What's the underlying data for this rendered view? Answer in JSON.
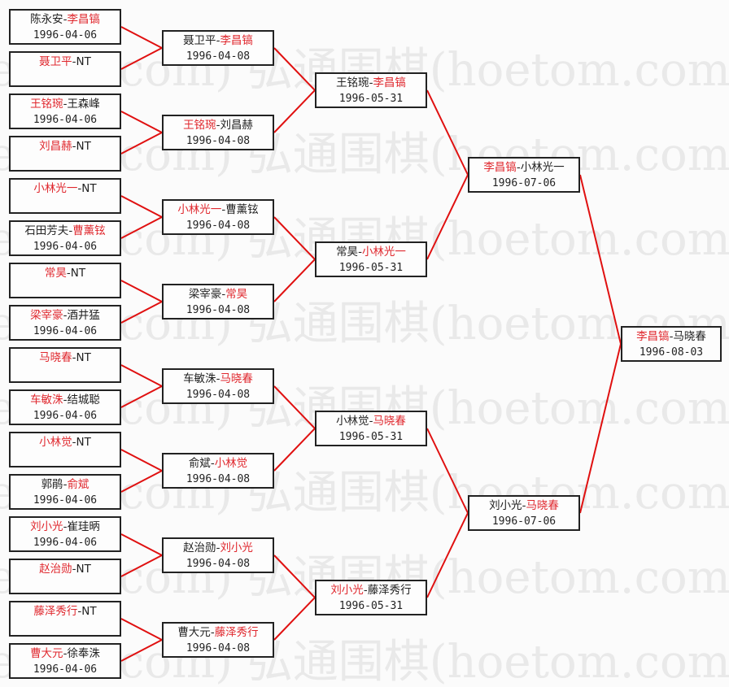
{
  "watermark": "弘通围棋(hoetom.com)",
  "colors": {
    "winner": "#e0282e",
    "line": "#e01010",
    "text": "#222222"
  },
  "rounds": [
    {
      "matches": [
        {
          "a": "陈永安",
          "b": "李昌镐",
          "winner": "b",
          "date": "1996-04-06"
        },
        {
          "a": "聂卫平",
          "b": "NT",
          "winner": "a",
          "date": ""
        },
        {
          "a": "王铭琬",
          "b": "王森峰",
          "winner": "a",
          "date": "1996-04-06"
        },
        {
          "a": "刘昌赫",
          "b": "NT",
          "winner": "a",
          "date": ""
        },
        {
          "a": "小林光一",
          "b": "NT",
          "winner": "a",
          "date": ""
        },
        {
          "a": "石田芳夫",
          "b": "曹薰铉",
          "winner": "b",
          "date": "1996-04-06"
        },
        {
          "a": "常昊",
          "b": "NT",
          "winner": "a",
          "date": ""
        },
        {
          "a": "梁宰豪",
          "b": "酒井猛",
          "winner": "a",
          "date": "1996-04-06"
        },
        {
          "a": "马晓春",
          "b": "NT",
          "winner": "a",
          "date": ""
        },
        {
          "a": "车敏洙",
          "b": "结城聪",
          "winner": "a",
          "date": "1996-04-06"
        },
        {
          "a": "小林觉",
          "b": "NT",
          "winner": "a",
          "date": ""
        },
        {
          "a": "郭鹃",
          "b": "俞斌",
          "winner": "b",
          "date": "1996-04-06"
        },
        {
          "a": "刘小光",
          "b": "崔珪昞",
          "winner": "a",
          "date": "1996-04-06"
        },
        {
          "a": "赵治勋",
          "b": "NT",
          "winner": "a",
          "date": ""
        },
        {
          "a": "藤泽秀行",
          "b": "NT",
          "winner": "a",
          "date": ""
        },
        {
          "a": "曹大元",
          "b": "徐奉洙",
          "winner": "a",
          "date": "1996-04-06"
        }
      ]
    },
    {
      "matches": [
        {
          "a": "聂卫平",
          "b": "李昌镐",
          "winner": "b",
          "date": "1996-04-08"
        },
        {
          "a": "王铭琬",
          "b": "刘昌赫",
          "winner": "a",
          "date": "1996-04-08"
        },
        {
          "a": "小林光一",
          "b": "曹薰铉",
          "winner": "a",
          "date": "1996-04-08"
        },
        {
          "a": "梁宰豪",
          "b": "常昊",
          "winner": "b",
          "date": "1996-04-08"
        },
        {
          "a": "车敏洙",
          "b": "马晓春",
          "winner": "b",
          "date": "1996-04-08"
        },
        {
          "a": "俞斌",
          "b": "小林觉",
          "winner": "b",
          "date": "1996-04-08"
        },
        {
          "a": "赵治勋",
          "b": "刘小光",
          "winner": "b",
          "date": "1996-04-08"
        },
        {
          "a": "曹大元",
          "b": "藤泽秀行",
          "winner": "b",
          "date": "1996-04-08"
        }
      ]
    },
    {
      "matches": [
        {
          "a": "王铭琬",
          "b": "李昌镐",
          "winner": "b",
          "date": "1996-05-31"
        },
        {
          "a": "常昊",
          "b": "小林光一",
          "winner": "b",
          "date": "1996-05-31"
        },
        {
          "a": "小林觉",
          "b": "马晓春",
          "winner": "b",
          "date": "1996-05-31"
        },
        {
          "a": "刘小光",
          "b": "藤泽秀行",
          "winner": "a",
          "date": "1996-05-31"
        }
      ]
    },
    {
      "matches": [
        {
          "a": "李昌镐",
          "b": "小林光一",
          "winner": "a",
          "date": "1996-07-06"
        },
        {
          "a": "刘小光",
          "b": "马晓春",
          "winner": "b",
          "date": "1996-07-06"
        }
      ]
    },
    {
      "matches": [
        {
          "a": "李昌镐",
          "b": "马晓春",
          "winner": "a",
          "date": "1996-08-03"
        }
      ]
    }
  ]
}
